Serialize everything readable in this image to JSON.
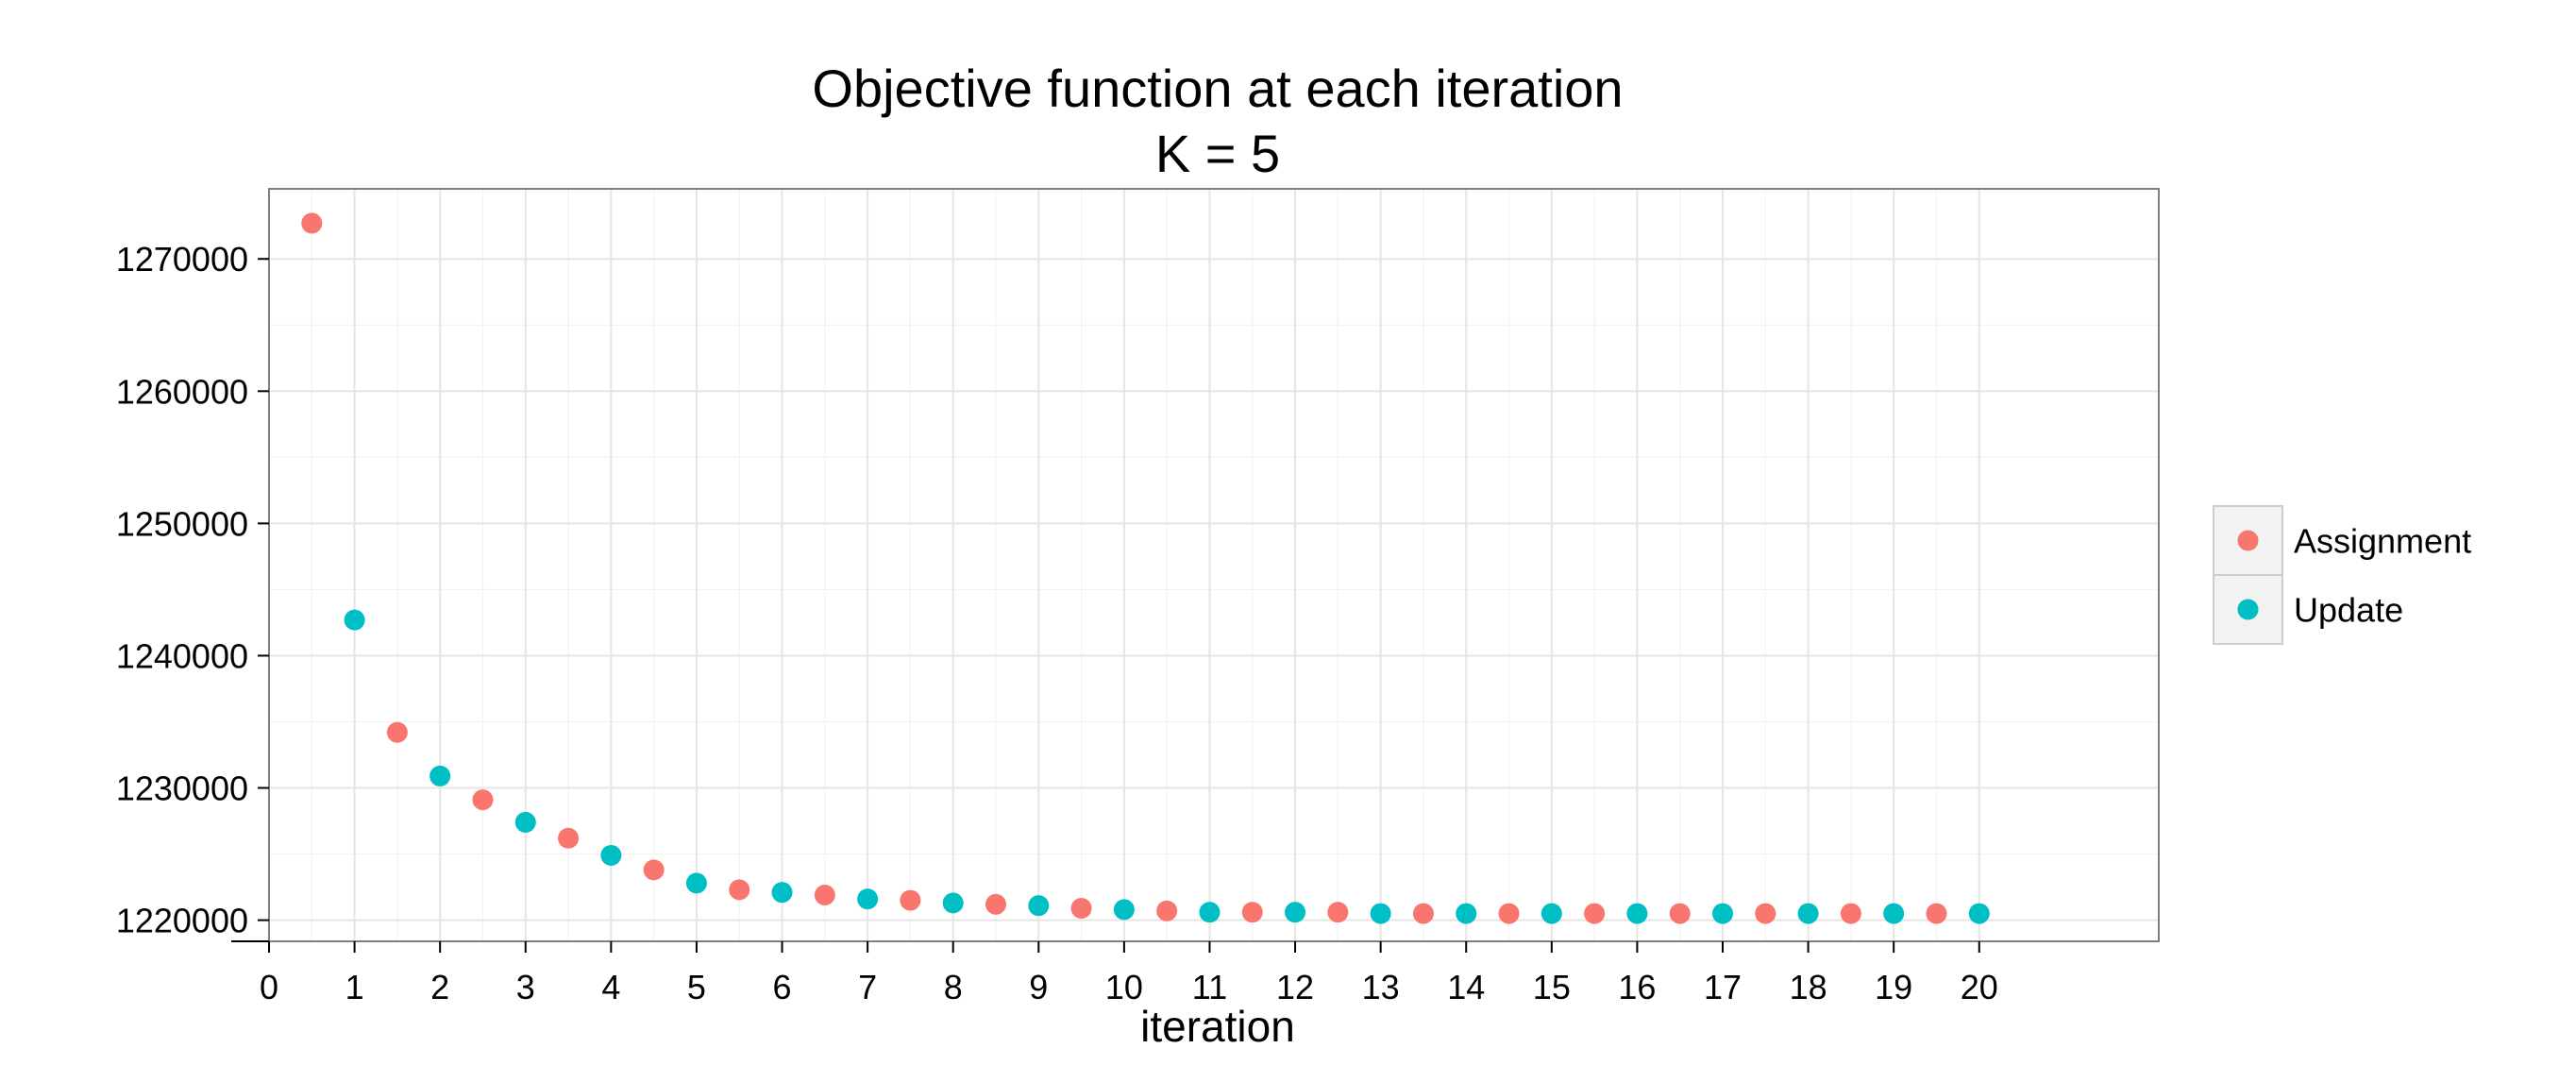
{
  "chart_data": {
    "type": "scatter",
    "title": "Objective function at each iteration",
    "subtitle": "K = 5",
    "xlabel": "iteration",
    "ylabel": "",
    "xlim": [
      0,
      22.1
    ],
    "ylim": [
      1218400,
      1275300
    ],
    "x_ticks": [
      0,
      1,
      2,
      3,
      4,
      5,
      6,
      7,
      8,
      9,
      10,
      11,
      12,
      13,
      14,
      15,
      16,
      17,
      18,
      19,
      20
    ],
    "y_ticks": [
      1220000,
      1230000,
      1240000,
      1250000,
      1260000,
      1270000
    ],
    "y_tick_labels": [
      "1220000",
      "1230000",
      "1240000",
      "1250000",
      "1260000",
      "1270000"
    ],
    "grid": true,
    "legend_position": "right",
    "series": [
      {
        "name": "Assignment",
        "color": "#F8766D",
        "points": [
          [
            0.5,
            1272700
          ],
          [
            1.5,
            1234200
          ],
          [
            2.5,
            1229100
          ],
          [
            3.5,
            1226200
          ],
          [
            4.5,
            1223800
          ],
          [
            5.5,
            1222300
          ],
          [
            6.5,
            1221900
          ],
          [
            7.5,
            1221500
          ],
          [
            8.5,
            1221200
          ],
          [
            9.5,
            1220900
          ],
          [
            10.5,
            1220700
          ],
          [
            11.5,
            1220600
          ],
          [
            12.5,
            1220600
          ],
          [
            13.5,
            1220500
          ],
          [
            14.5,
            1220500
          ],
          [
            15.5,
            1220500
          ],
          [
            16.5,
            1220500
          ],
          [
            17.5,
            1220500
          ],
          [
            18.5,
            1220500
          ],
          [
            19.5,
            1220500
          ]
        ]
      },
      {
        "name": "Update",
        "color": "#00BFC4",
        "points": [
          [
            1,
            1242700
          ],
          [
            2,
            1230900
          ],
          [
            3,
            1227400
          ],
          [
            4,
            1224900
          ],
          [
            5,
            1222800
          ],
          [
            6,
            1222100
          ],
          [
            7,
            1221600
          ],
          [
            8,
            1221300
          ],
          [
            9,
            1221100
          ],
          [
            10,
            1220800
          ],
          [
            11,
            1220600
          ],
          [
            12,
            1220600
          ],
          [
            13,
            1220500
          ],
          [
            14,
            1220500
          ],
          [
            15,
            1220500
          ],
          [
            16,
            1220500
          ],
          [
            17,
            1220500
          ],
          [
            18,
            1220500
          ],
          [
            19,
            1220500
          ],
          [
            20,
            1220500
          ]
        ]
      }
    ]
  }
}
